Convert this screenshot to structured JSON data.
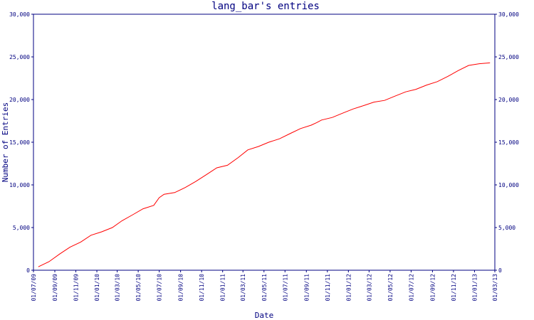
{
  "chart_data": {
    "type": "line",
    "title": "lang_bar's entries",
    "xlabel": "Date",
    "ylabel": "Number of Entries",
    "ylim": [
      0,
      30000
    ],
    "y_ticks": [
      0,
      5000,
      10000,
      15000,
      20000,
      25000,
      30000
    ],
    "y_tick_labels": [
      "0",
      "5,000",
      "10,000",
      "15,000",
      "20,000",
      "25,000",
      "30,000"
    ],
    "x_ticks": [
      "01/07/09",
      "01/09/09",
      "01/11/09",
      "01/01/10",
      "01/03/10",
      "01/05/10",
      "01/07/10",
      "01/09/10",
      "01/11/10",
      "01/01/11",
      "01/03/11",
      "01/05/11",
      "01/07/11",
      "01/09/11",
      "01/11/11",
      "01/01/12",
      "01/03/12",
      "01/05/12",
      "01/07/12",
      "01/09/12",
      "01/11/12",
      "01/01/13",
      "01/03/13"
    ],
    "colors": {
      "axis": "#000080",
      "series": "#ff0000",
      "background": "#ffffff"
    },
    "grid": false,
    "x_dates": [
      "2009-07-15",
      "2009-08-15",
      "2009-09-15",
      "2009-10-15",
      "2009-11-15",
      "2009-12-15",
      "2010-01-15",
      "2010-02-15",
      "2010-03-15",
      "2010-04-15",
      "2010-05-15",
      "2010-06-15",
      "2010-07-01",
      "2010-07-15",
      "2010-08-15",
      "2010-09-15",
      "2010-10-15",
      "2010-11-15",
      "2010-12-15",
      "2011-01-15",
      "2011-02-15",
      "2011-03-15",
      "2011-04-15",
      "2011-05-15",
      "2011-06-15",
      "2011-07-15",
      "2011-08-15",
      "2011-09-15",
      "2011-10-01",
      "2011-10-15",
      "2011-11-15",
      "2011-12-15",
      "2012-01-15",
      "2012-02-15",
      "2012-03-15",
      "2012-04-15",
      "2012-05-15",
      "2012-06-15",
      "2012-07-15",
      "2012-08-15",
      "2012-09-15",
      "2012-10-15",
      "2012-11-15",
      "2012-12-15",
      "2013-01-15",
      "2013-02-15"
    ],
    "series": [
      {
        "values": [
          400,
          1000,
          1900,
          2700,
          3300,
          4100,
          4500,
          5000,
          5800,
          6500,
          7200,
          7600,
          8500,
          8900,
          9100,
          9700,
          10400,
          11200,
          12000,
          12300,
          13200,
          14100,
          14500,
          15000,
          15400,
          16000,
          16600,
          17000,
          17300,
          17600,
          17900,
          18400,
          18900,
          19300,
          19700,
          19900,
          20400,
          20900,
          21200,
          21700,
          22100,
          22700,
          23400,
          24000,
          24200,
          24300
        ]
      }
    ]
  }
}
